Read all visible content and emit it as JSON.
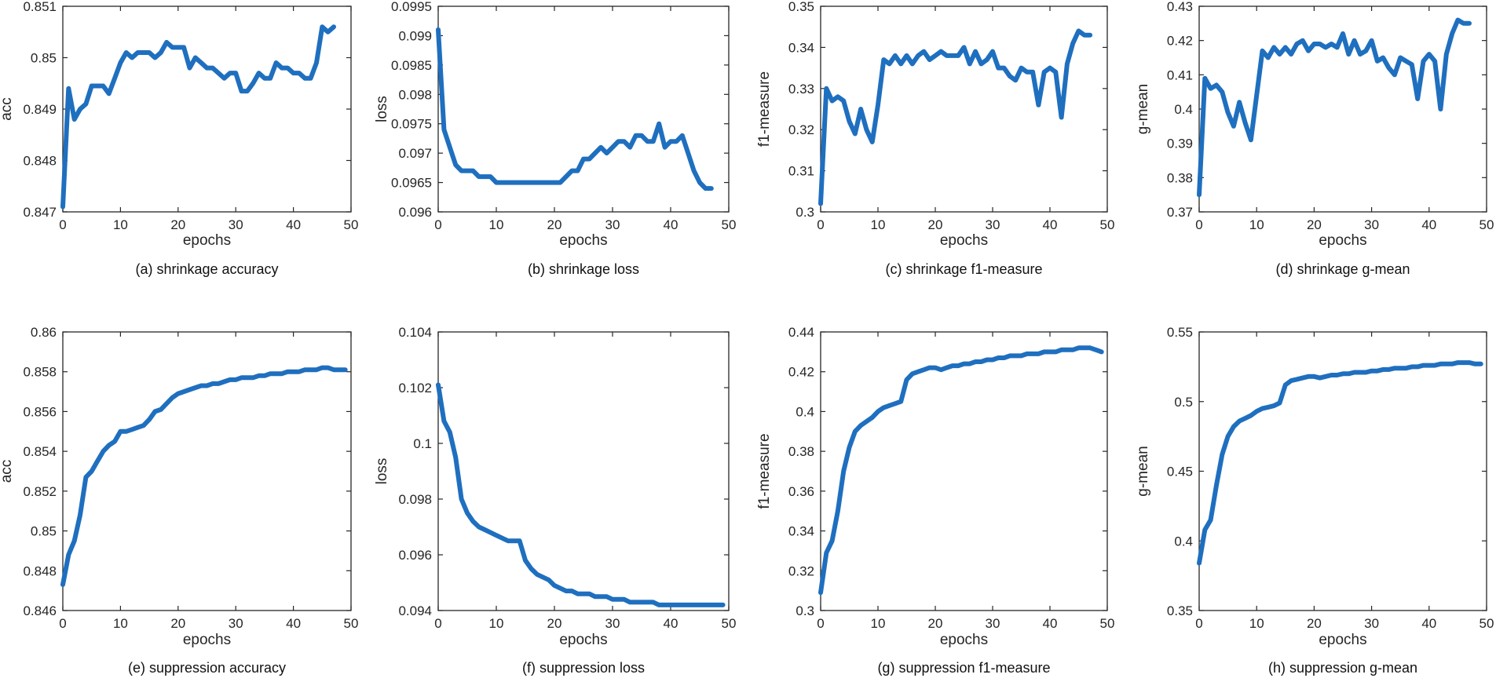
{
  "figure": {
    "line_color": "#1f6fbf",
    "axis_color": "#262626"
  },
  "chart_data": [
    {
      "type": "line",
      "caption": "(a) shrinkage accuracy",
      "xlabel": "epochs",
      "ylabel": "acc",
      "xlim": [
        0,
        50
      ],
      "ylim": [
        0.847,
        0.851
      ],
      "xticks": [
        "0",
        "10",
        "20",
        "30",
        "40",
        "50"
      ],
      "yticks": [
        "0.847",
        "0.848",
        "0.849",
        "0.85",
        "0.851"
      ],
      "x": [
        0,
        1,
        2,
        3,
        4,
        5,
        6,
        7,
        8,
        9,
        10,
        11,
        12,
        13,
        14,
        15,
        16,
        17,
        18,
        19,
        20,
        21,
        22,
        23,
        24,
        25,
        26,
        27,
        28,
        29,
        30,
        31,
        32,
        33,
        34,
        35,
        36,
        37,
        38,
        39,
        40,
        41,
        42,
        43,
        44,
        45,
        46,
        47
      ],
      "values": [
        0.8471,
        0.8494,
        0.8488,
        0.849,
        0.8491,
        0.84945,
        0.84945,
        0.84945,
        0.8493,
        0.8496,
        0.8499,
        0.8501,
        0.85,
        0.8501,
        0.8501,
        0.8501,
        0.85,
        0.8501,
        0.8503,
        0.8502,
        0.8502,
        0.8502,
        0.8498,
        0.85,
        0.8499,
        0.8498,
        0.8498,
        0.8497,
        0.8496,
        0.8497,
        0.8497,
        0.84935,
        0.84935,
        0.8495,
        0.8497,
        0.8496,
        0.8496,
        0.8499,
        0.8498,
        0.8498,
        0.8497,
        0.8497,
        0.8496,
        0.8496,
        0.8499,
        0.8506,
        0.8505,
        0.8506
      ]
    },
    {
      "type": "line",
      "caption": "(b) shrinkage loss",
      "xlabel": "epochs",
      "ylabel": "loss",
      "xlim": [
        0,
        50
      ],
      "ylim": [
        0.096,
        0.0995
      ],
      "xticks": [
        "0",
        "10",
        "20",
        "30",
        "40",
        "50"
      ],
      "yticks": [
        "0.096",
        "0.0965",
        "0.097",
        "0.0975",
        "0.098",
        "0.0985",
        "0.099",
        "0.0995"
      ],
      "x": [
        0,
        1,
        2,
        3,
        4,
        5,
        6,
        7,
        8,
        9,
        10,
        11,
        12,
        13,
        14,
        15,
        16,
        17,
        18,
        19,
        20,
        21,
        22,
        23,
        24,
        25,
        26,
        27,
        28,
        29,
        30,
        31,
        32,
        33,
        34,
        35,
        36,
        37,
        38,
        39,
        40,
        41,
        42,
        43,
        44,
        45,
        46,
        47
      ],
      "values": [
        0.0991,
        0.0974,
        0.0971,
        0.0968,
        0.0967,
        0.0967,
        0.0967,
        0.0966,
        0.0966,
        0.0966,
        0.0965,
        0.0965,
        0.0965,
        0.0965,
        0.0965,
        0.0965,
        0.0965,
        0.0965,
        0.0965,
        0.0965,
        0.0965,
        0.0965,
        0.0966,
        0.0967,
        0.0967,
        0.0969,
        0.0969,
        0.097,
        0.0971,
        0.097,
        0.0971,
        0.0972,
        0.0972,
        0.0971,
        0.0973,
        0.0973,
        0.0972,
        0.0972,
        0.0975,
        0.0971,
        0.0972,
        0.0972,
        0.0973,
        0.097,
        0.0967,
        0.0965,
        0.0964,
        0.0964
      ]
    },
    {
      "type": "line",
      "caption": "(c) shrinkage f1-measure",
      "xlabel": "epochs",
      "ylabel": "f1-measure",
      "xlim": [
        0,
        50
      ],
      "ylim": [
        0.3,
        0.35
      ],
      "xticks": [
        "0",
        "10",
        "20",
        "30",
        "40",
        "50"
      ],
      "yticks": [
        "0.3",
        "0.31",
        "0.32",
        "0.33",
        "0.34",
        "0.35"
      ],
      "x": [
        0,
        1,
        2,
        3,
        4,
        5,
        6,
        7,
        8,
        9,
        10,
        11,
        12,
        13,
        14,
        15,
        16,
        17,
        18,
        19,
        20,
        21,
        22,
        23,
        24,
        25,
        26,
        27,
        28,
        29,
        30,
        31,
        32,
        33,
        34,
        35,
        36,
        37,
        38,
        39,
        40,
        41,
        42,
        43,
        44,
        45,
        46,
        47
      ],
      "values": [
        0.302,
        0.33,
        0.327,
        0.328,
        0.327,
        0.322,
        0.319,
        0.325,
        0.32,
        0.317,
        0.326,
        0.337,
        0.336,
        0.338,
        0.336,
        0.338,
        0.336,
        0.338,
        0.339,
        0.337,
        0.338,
        0.339,
        0.338,
        0.338,
        0.338,
        0.34,
        0.336,
        0.339,
        0.336,
        0.337,
        0.339,
        0.335,
        0.335,
        0.333,
        0.332,
        0.335,
        0.334,
        0.334,
        0.326,
        0.334,
        0.335,
        0.334,
        0.323,
        0.336,
        0.341,
        0.344,
        0.343,
        0.343
      ]
    },
    {
      "type": "line",
      "caption": "(d) shrinkage g-mean",
      "xlabel": "epochs",
      "ylabel": "g-mean",
      "xlim": [
        0,
        50
      ],
      "ylim": [
        0.37,
        0.43
      ],
      "xticks": [
        "0",
        "10",
        "20",
        "30",
        "40",
        "50"
      ],
      "yticks": [
        "0.37",
        "0.38",
        "0.39",
        "0.4",
        "0.41",
        "0.42",
        "0.43"
      ],
      "x": [
        0,
        1,
        2,
        3,
        4,
        5,
        6,
        7,
        8,
        9,
        10,
        11,
        12,
        13,
        14,
        15,
        16,
        17,
        18,
        19,
        20,
        21,
        22,
        23,
        24,
        25,
        26,
        27,
        28,
        29,
        30,
        31,
        32,
        33,
        34,
        35,
        36,
        37,
        38,
        39,
        40,
        41,
        42,
        43,
        44,
        45,
        46,
        47
      ],
      "values": [
        0.375,
        0.409,
        0.406,
        0.407,
        0.405,
        0.399,
        0.395,
        0.402,
        0.396,
        0.391,
        0.404,
        0.417,
        0.415,
        0.418,
        0.416,
        0.418,
        0.416,
        0.419,
        0.42,
        0.417,
        0.419,
        0.419,
        0.418,
        0.419,
        0.418,
        0.422,
        0.416,
        0.42,
        0.416,
        0.417,
        0.42,
        0.414,
        0.415,
        0.412,
        0.41,
        0.415,
        0.414,
        0.413,
        0.403,
        0.414,
        0.416,
        0.414,
        0.4,
        0.416,
        0.422,
        0.426,
        0.425,
        0.425
      ]
    },
    {
      "type": "line",
      "caption": "(e) suppression accuracy",
      "xlabel": "epochs",
      "ylabel": "acc",
      "xlim": [
        0,
        50
      ],
      "ylim": [
        0.846,
        0.86
      ],
      "xticks": [
        "0",
        "10",
        "20",
        "30",
        "40",
        "50"
      ],
      "yticks": [
        "0.846",
        "0.848",
        "0.85",
        "0.852",
        "0.854",
        "0.856",
        "0.858",
        "0.86"
      ],
      "x": [
        0,
        1,
        2,
        3,
        4,
        5,
        6,
        7,
        8,
        9,
        10,
        11,
        12,
        13,
        14,
        15,
        16,
        17,
        18,
        19,
        20,
        21,
        22,
        23,
        24,
        25,
        26,
        27,
        28,
        29,
        30,
        31,
        32,
        33,
        34,
        35,
        36,
        37,
        38,
        39,
        40,
        41,
        42,
        43,
        44,
        45,
        46,
        47,
        48,
        49
      ],
      "values": [
        0.8473,
        0.8488,
        0.8495,
        0.8508,
        0.8527,
        0.853,
        0.8535,
        0.854,
        0.8543,
        0.8545,
        0.855,
        0.855,
        0.8551,
        0.8552,
        0.8553,
        0.8556,
        0.856,
        0.8561,
        0.8564,
        0.8567,
        0.8569,
        0.857,
        0.8571,
        0.8572,
        0.8573,
        0.8573,
        0.8574,
        0.8574,
        0.8575,
        0.8576,
        0.8576,
        0.8577,
        0.8577,
        0.8577,
        0.8578,
        0.8578,
        0.8579,
        0.8579,
        0.8579,
        0.858,
        0.858,
        0.858,
        0.8581,
        0.8581,
        0.8581,
        0.8582,
        0.8582,
        0.8581,
        0.8581,
        0.8581
      ]
    },
    {
      "type": "line",
      "caption": "(f) suppression loss",
      "xlabel": "epochs",
      "ylabel": "loss",
      "xlim": [
        0,
        50
      ],
      "ylim": [
        0.094,
        0.104
      ],
      "xticks": [
        "0",
        "10",
        "20",
        "30",
        "40",
        "50"
      ],
      "yticks": [
        "0.094",
        "0.096",
        "0.098",
        "0.1",
        "0.102",
        "0.104"
      ],
      "x": [
        0,
        1,
        2,
        3,
        4,
        5,
        6,
        7,
        8,
        9,
        10,
        11,
        12,
        13,
        14,
        15,
        16,
        17,
        18,
        19,
        20,
        21,
        22,
        23,
        24,
        25,
        26,
        27,
        28,
        29,
        30,
        31,
        32,
        33,
        34,
        35,
        36,
        37,
        38,
        39,
        40,
        41,
        42,
        43,
        44,
        45,
        46,
        47,
        48,
        49
      ],
      "values": [
        0.1021,
        0.1008,
        0.1004,
        0.0995,
        0.098,
        0.0975,
        0.0972,
        0.097,
        0.0969,
        0.0968,
        0.0967,
        0.0966,
        0.0965,
        0.0965,
        0.0965,
        0.0958,
        0.0955,
        0.0953,
        0.0952,
        0.0951,
        0.0949,
        0.0948,
        0.0947,
        0.0947,
        0.0946,
        0.0946,
        0.0946,
        0.0945,
        0.0945,
        0.0945,
        0.0944,
        0.0944,
        0.0944,
        0.0943,
        0.0943,
        0.0943,
        0.0943,
        0.0943,
        0.0942,
        0.0942,
        0.0942,
        0.0942,
        0.0942,
        0.0942,
        0.0942,
        0.0942,
        0.0942,
        0.0942,
        0.0942,
        0.0942
      ]
    },
    {
      "type": "line",
      "caption": "(g) suppression f1-measure",
      "xlabel": "epochs",
      "ylabel": "f1-measure",
      "xlim": [
        0,
        50
      ],
      "ylim": [
        0.3,
        0.44
      ],
      "xticks": [
        "0",
        "10",
        "20",
        "30",
        "40",
        "50"
      ],
      "yticks": [
        "0.3",
        "0.32",
        "0.34",
        "0.36",
        "0.38",
        "0.4",
        "0.42",
        "0.44"
      ],
      "x": [
        0,
        1,
        2,
        3,
        4,
        5,
        6,
        7,
        8,
        9,
        10,
        11,
        12,
        13,
        14,
        15,
        16,
        17,
        18,
        19,
        20,
        21,
        22,
        23,
        24,
        25,
        26,
        27,
        28,
        29,
        30,
        31,
        32,
        33,
        34,
        35,
        36,
        37,
        38,
        39,
        40,
        41,
        42,
        43,
        44,
        45,
        46,
        47,
        48,
        49
      ],
      "values": [
        0.309,
        0.329,
        0.335,
        0.35,
        0.37,
        0.382,
        0.39,
        0.393,
        0.395,
        0.397,
        0.4,
        0.402,
        0.403,
        0.404,
        0.405,
        0.416,
        0.419,
        0.42,
        0.421,
        0.422,
        0.422,
        0.421,
        0.422,
        0.423,
        0.423,
        0.424,
        0.424,
        0.425,
        0.425,
        0.426,
        0.426,
        0.427,
        0.427,
        0.428,
        0.428,
        0.428,
        0.429,
        0.429,
        0.429,
        0.43,
        0.43,
        0.43,
        0.431,
        0.431,
        0.431,
        0.432,
        0.432,
        0.432,
        0.431,
        0.43
      ]
    },
    {
      "type": "line",
      "caption": "(h) suppression g-mean",
      "xlabel": "epochs",
      "ylabel": "g-mean",
      "xlim": [
        0,
        50
      ],
      "ylim": [
        0.35,
        0.55
      ],
      "xticks": [
        "0",
        "10",
        "20",
        "30",
        "40",
        "50"
      ],
      "yticks": [
        "0.35",
        "0.4",
        "0.45",
        "0.5",
        "0.55"
      ],
      "x": [
        0,
        1,
        2,
        3,
        4,
        5,
        6,
        7,
        8,
        9,
        10,
        11,
        12,
        13,
        14,
        15,
        16,
        17,
        18,
        19,
        20,
        21,
        22,
        23,
        24,
        25,
        26,
        27,
        28,
        29,
        30,
        31,
        32,
        33,
        34,
        35,
        36,
        37,
        38,
        39,
        40,
        41,
        42,
        43,
        44,
        45,
        46,
        47,
        48,
        49
      ],
      "values": [
        0.384,
        0.408,
        0.415,
        0.44,
        0.462,
        0.475,
        0.482,
        0.486,
        0.488,
        0.49,
        0.493,
        0.495,
        0.496,
        0.497,
        0.499,
        0.512,
        0.515,
        0.516,
        0.517,
        0.518,
        0.518,
        0.517,
        0.518,
        0.519,
        0.519,
        0.52,
        0.52,
        0.521,
        0.521,
        0.521,
        0.522,
        0.522,
        0.523,
        0.523,
        0.524,
        0.524,
        0.524,
        0.525,
        0.525,
        0.526,
        0.526,
        0.526,
        0.527,
        0.527,
        0.527,
        0.528,
        0.528,
        0.528,
        0.527,
        0.527
      ]
    }
  ]
}
